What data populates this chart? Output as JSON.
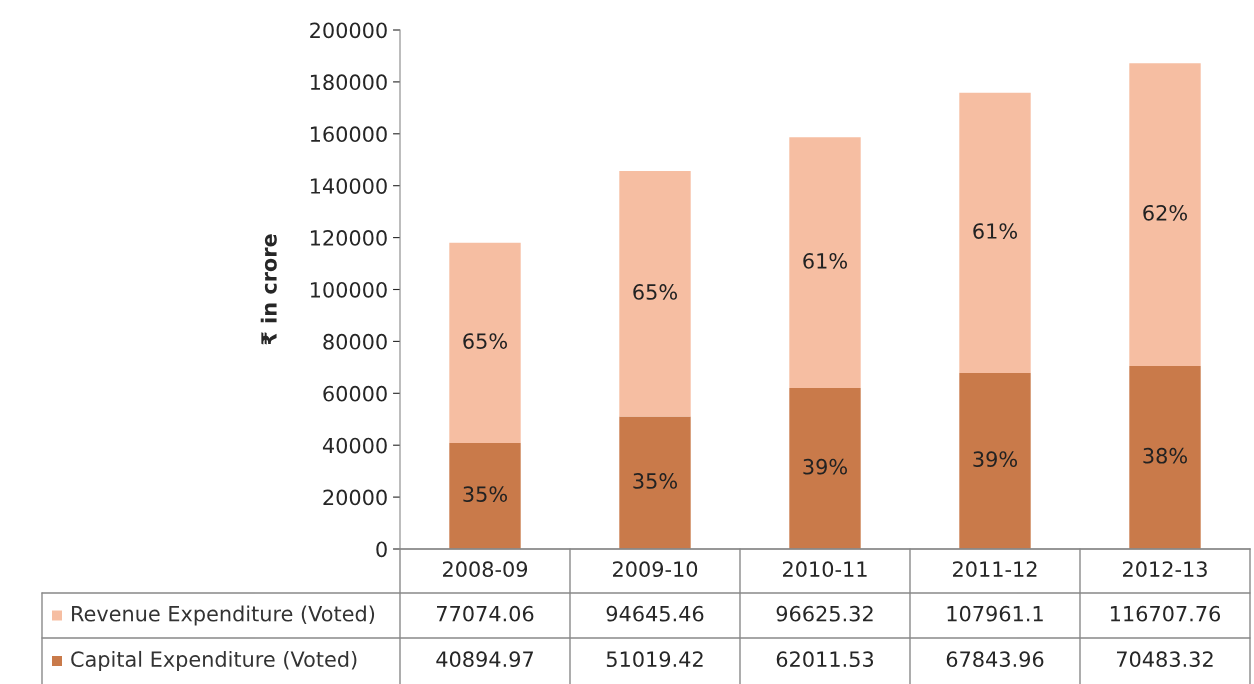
{
  "chart_data": {
    "type": "bar",
    "stacked": true,
    "ylabel": "₹ in crore",
    "categories": [
      "2008-09",
      "2009-10",
      "2010-11",
      "2011-12",
      "2012-13"
    ],
    "series": [
      {
        "name": "Capital Expenditure (Voted)",
        "color": "#c97a4a",
        "values": [
          40894.97,
          51019.42,
          62011.53,
          67843.96,
          70483.32
        ]
      },
      {
        "name": "Revenue Expenditure (Voted)",
        "color": "#f6bea2",
        "values": [
          77074.06,
          94645.46,
          96625.32,
          107961.1,
          116707.76
        ]
      }
    ],
    "annotations": [
      "35%",
      "35%",
      "39%",
      "39%",
      "38%",
      "65%",
      "65%",
      "61%",
      "61%",
      "62%"
    ],
    "ylim": [
      0,
      200000
    ],
    "yticks": [
      0,
      20000,
      40000,
      60000,
      80000,
      100000,
      120000,
      140000,
      160000,
      180000,
      200000
    ],
    "data_labels": true,
    "legend": "bottom",
    "grid": false
  }
}
